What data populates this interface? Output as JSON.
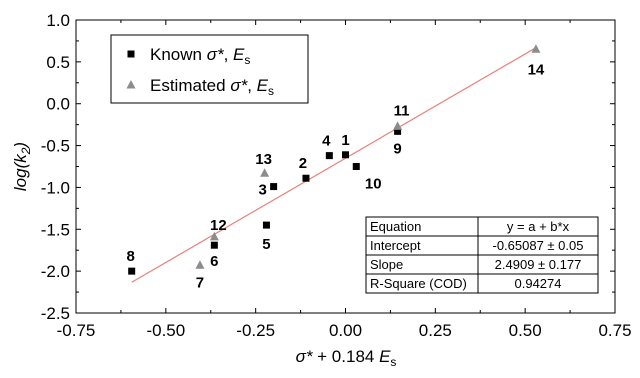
{
  "chart_data": {
    "type": "scatter",
    "xlabel_parts": {
      "sigma": "σ*",
      "rest": " + 0.184 ",
      "E": "E",
      "E_sub": "s"
    },
    "ylabel_parts": {
      "prefix": "log(k",
      "sub": "2",
      "suffix": ")"
    },
    "xlim": [
      -0.75,
      0.75
    ],
    "ylim": [
      -2.5,
      1.0
    ],
    "x_ticks": [
      "-0.75",
      "-0.50",
      "-0.25",
      "0.00",
      "0.25",
      "0.50",
      "0.75"
    ],
    "y_ticks": [
      "1.0",
      "0.5",
      "0.0",
      "-0.5",
      "-1.0",
      "-1.5",
      "-2.0",
      "-2.5"
    ],
    "legend": {
      "position": "top-left",
      "entries": [
        {
          "series": "known",
          "marker": "square",
          "label_prefix": "Known ",
          "label_sigma": "σ*",
          "label_mid": ", ",
          "label_E": "E",
          "label_E_sub": "s"
        },
        {
          "series": "estimated",
          "marker": "triangle",
          "label_prefix": "Estimated ",
          "label_sigma": "σ*",
          "label_mid": ", ",
          "label_E": "E",
          "label_E_sub": "s"
        }
      ]
    },
    "series": [
      {
        "key": "known",
        "marker": "square",
        "color": "#000000",
        "points": [
          {
            "label": "1",
            "x": 0.0,
            "y": -0.61
          },
          {
            "label": "2",
            "x": -0.11,
            "y": -0.89
          },
          {
            "label": "3",
            "x": -0.2,
            "y": -0.99
          },
          {
            "label": "4",
            "x": -0.045,
            "y": -0.62
          },
          {
            "label": "5",
            "x": -0.22,
            "y": -1.45
          },
          {
            "label": "6",
            "x": -0.365,
            "y": -1.69
          },
          {
            "label": "8",
            "x": -0.595,
            "y": -2.0
          },
          {
            "label": "9",
            "x": 0.145,
            "y": -0.33
          },
          {
            "label": "10",
            "x": 0.03,
            "y": -0.75
          }
        ]
      },
      {
        "key": "estimated",
        "marker": "triangle",
        "color": "#8c8c8c",
        "points": [
          {
            "label": "7",
            "x": -0.405,
            "y": -1.93
          },
          {
            "label": "11",
            "x": 0.145,
            "y": -0.27
          },
          {
            "label": "12",
            "x": -0.365,
            "y": -1.59
          },
          {
            "label": "13",
            "x": -0.225,
            "y": -0.83
          },
          {
            "label": "14",
            "x": 0.53,
            "y": 0.65
          }
        ]
      }
    ],
    "fit_line": {
      "color": "#e8807a",
      "intercept": -0.65087,
      "slope": 2.4909,
      "x_range": [
        -0.595,
        0.53
      ]
    },
    "stats_table": {
      "position": "bottom-right",
      "rows": [
        [
          "Equation",
          "y = a + b*x"
        ],
        [
          "Intercept",
          "-0.65087 ± 0.05"
        ],
        [
          "Slope",
          "2.4909 ± 0.177"
        ],
        [
          "R-Square (COD)",
          "0.94274"
        ]
      ]
    }
  }
}
